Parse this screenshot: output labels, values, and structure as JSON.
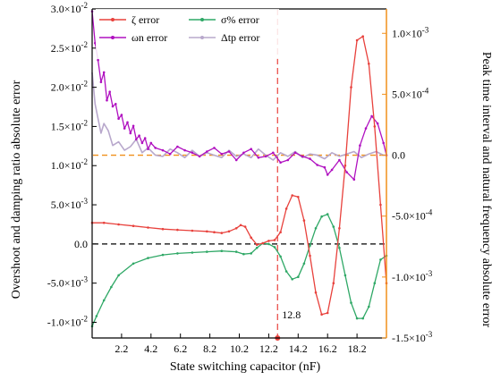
{
  "chart_data": {
    "type": "line",
    "xlabel": "State switching capacitor (nF)",
    "ylabel_left": "Overshoot and damping ratio absolute error",
    "ylabel_right": "Peak time interval and natural frequency absolute error",
    "x_ticks": [
      "2.2",
      "4.2",
      "6.2",
      "8.2",
      "10.2",
      "12.2",
      "14.2",
      "16.2",
      "18.2"
    ],
    "x_tick_values": [
      2.2,
      4.2,
      6.2,
      8.2,
      10.2,
      12.2,
      14.2,
      16.2,
      18.2
    ],
    "xlim": [
      0.2,
      20.2
    ],
    "ylim_left": [
      -0.012,
      0.03
    ],
    "ylim_right": [
      -0.0015,
      0.0012
    ],
    "left_ticks": [
      {
        "v": -0.01,
        "m": "-1.0",
        "e": "-2"
      },
      {
        "v": -0.005,
        "m": "-5.0",
        "e": "-3"
      },
      {
        "v": 0.0,
        "m": "0.0",
        "e": ""
      },
      {
        "v": 0.005,
        "m": "5.0",
        "e": "-3"
      },
      {
        "v": 0.01,
        "m": "1.0",
        "e": "-2"
      },
      {
        "v": 0.015,
        "m": "1.5",
        "e": "-2"
      },
      {
        "v": 0.02,
        "m": "2.0",
        "e": "-2"
      },
      {
        "v": 0.025,
        "m": "2.5",
        "e": "-2"
      },
      {
        "v": 0.03,
        "m": "3.0",
        "e": "-2"
      }
    ],
    "right_ticks": [
      {
        "v": -0.0015,
        "m": "-1.5",
        "e": "-3"
      },
      {
        "v": -0.001,
        "m": "-1.0",
        "e": "-3"
      },
      {
        "v": -0.0005,
        "m": "-5.0",
        "e": "-4"
      },
      {
        "v": 0.0,
        "m": "0.0",
        "e": ""
      },
      {
        "v": 0.0005,
        "m": "5.0",
        "e": "-4"
      },
      {
        "v": 0.001,
        "m": "1.0",
        "e": "-3"
      }
    ],
    "vline": {
      "x": 12.8,
      "label": "12.8"
    },
    "legend": [
      {
        "text": "ζ error",
        "color": "#e8413c"
      },
      {
        "text": "σ% error",
        "color": "#2fa866"
      },
      {
        "text": "ωn error",
        "color": "#b010c0"
      },
      {
        "text": "Δtp error",
        "color": "#b8a8cc"
      }
    ],
    "colors": {
      "zeta": "#e8413c",
      "sigma": "#2fa866",
      "omega": "#b010c0",
      "dtp": "#b8a8cc",
      "right_axis": "#f0901a",
      "vline": "#e8413c"
    },
    "series": [
      {
        "key": "zeta",
        "axis": "left",
        "color": "#e8413c",
        "x": [
          0.2,
          1,
          2,
          3,
          4,
          5,
          6,
          7,
          8,
          8.5,
          9,
          9.5,
          10,
          10.3,
          10.6,
          11,
          11.4,
          11.8,
          12.2,
          12.6,
          13,
          13.4,
          13.8,
          14.2,
          14.6,
          15,
          15.4,
          15.8,
          16.2,
          16.6,
          17,
          17.4,
          17.8,
          18.2,
          18.6,
          19,
          19.4,
          19.8,
          20.2
        ],
        "y": [
          0.0027,
          0.0027,
          0.0025,
          0.0023,
          0.0021,
          0.0019,
          0.0018,
          0.0017,
          0.0016,
          0.0015,
          0.0014,
          0.0016,
          0.002,
          0.0024,
          0.0022,
          0.0008,
          -0.0001,
          0.0001,
          0.0004,
          0.0005,
          0.0015,
          0.0045,
          0.0062,
          0.006,
          0.003,
          -0.0015,
          -0.0062,
          -0.009,
          -0.0088,
          -0.005,
          0.002,
          0.01,
          0.02,
          0.026,
          0.0265,
          0.023,
          0.015,
          0.005,
          -0.005
        ]
      },
      {
        "key": "sigma",
        "axis": "left",
        "color": "#2fa866",
        "x": [
          0.2,
          0.5,
          1,
          1.5,
          2,
          3,
          4,
          5,
          6,
          7,
          8,
          9,
          10,
          10.5,
          11,
          11.4,
          11.8,
          12.2,
          12.6,
          13,
          13.4,
          13.8,
          14.2,
          14.6,
          15,
          15.4,
          15.8,
          16.2,
          16.6,
          17,
          17.4,
          17.8,
          18.2,
          18.6,
          19,
          19.4,
          19.8,
          20.2
        ],
        "y": [
          -0.0105,
          -0.0092,
          -0.0072,
          -0.0055,
          -0.004,
          -0.0025,
          -0.0018,
          -0.0014,
          -0.0012,
          -0.0011,
          -0.001,
          -0.0009,
          -0.001,
          -0.0013,
          -0.0012,
          -0.0005,
          0.0001,
          0.0,
          -0.0004,
          -0.0016,
          -0.0035,
          -0.0045,
          -0.0042,
          -0.0025,
          -0.0002,
          0.002,
          0.0035,
          0.0038,
          0.0022,
          -0.0005,
          -0.004,
          -0.0075,
          -0.0095,
          -0.0095,
          -0.008,
          -0.005,
          -0.002,
          -0.0015
        ]
      },
      {
        "key": "omega",
        "axis": "right",
        "color": "#b010c0",
        "x": [
          0.2,
          0.4,
          0.6,
          0.8,
          1,
          1.2,
          1.4,
          1.6,
          1.8,
          2,
          2.2,
          2.4,
          2.6,
          2.8,
          3,
          3.2,
          3.4,
          3.6,
          3.8,
          4,
          4.2,
          4.5,
          5,
          5.5,
          6,
          6.5,
          7,
          7.5,
          8,
          8.5,
          9,
          9.5,
          10,
          10.5,
          11,
          11.5,
          12,
          12.5,
          13,
          13.5,
          14,
          14.5,
          15,
          15.5,
          16,
          16.2,
          16.5,
          17,
          17.5,
          18,
          18.4,
          18.8,
          19.2,
          19.6,
          20,
          20.2
        ],
        "y": [
          0.00118,
          0.00092,
          0.00078,
          0.0006,
          0.00068,
          0.00045,
          0.00052,
          0.0004,
          0.00042,
          0.0003,
          0.00033,
          0.00022,
          0.00027,
          0.00018,
          0.00024,
          0.00013,
          0.00016,
          0.0001,
          0.00014,
          5e-05,
          0.0001,
          6e-05,
          4e-05,
          1e-05,
          7e-05,
          4e-05,
          2e-05,
          -1e-05,
          3e-05,
          6e-05,
          1e-05,
          3e-05,
          -4e-05,
          2e-05,
          5e-05,
          -2e-05,
          -1e-05,
          2e-05,
          -6e-05,
          -4e-05,
          2e-05,
          -1e-05,
          -3e-05,
          -8e-05,
          -0.0001,
          -0.00016,
          -0.00012,
          -4e-05,
          -0.00014,
          -0.0002,
          8e-05,
          0.00022,
          0.00032,
          0.00026,
          0.0001,
          0.0
        ]
      },
      {
        "key": "dtp",
        "axis": "right",
        "color": "#b8a8cc",
        "x": [
          0.2,
          0.4,
          0.6,
          0.8,
          1,
          1.3,
          1.6,
          2,
          2.4,
          2.8,
          3.2,
          3.6,
          4,
          4.5,
          5,
          5.5,
          6,
          6.5,
          7,
          7.5,
          8,
          8.5,
          9,
          9.5,
          10,
          10.5,
          11,
          11.5,
          12,
          12.5,
          13,
          13.5,
          14,
          14.5,
          15,
          15.5,
          16,
          16.5,
          17,
          17.5,
          18,
          18.5,
          19,
          19.5,
          20,
          20.2
        ],
        "y": [
          0.00068,
          0.00042,
          0.0003,
          0.00018,
          0.00026,
          0.0002,
          8e-05,
          0.00011,
          4e-05,
          7e-05,
          0.00013,
          2e-05,
          6e-05,
          0.0,
          -1e-05,
          5e-05,
          2e-05,
          -2e-05,
          4e-05,
          -1e-05,
          2e-05,
          0.0,
          -2e-05,
          4e-05,
          -1e-05,
          1e-05,
          -2e-05,
          5e-05,
          0.0,
          -4e-05,
          2e-05,
          -1e-05,
          3e-05,
          -2e-05,
          1e-05,
          0.0,
          -3e-05,
          2e-05,
          -1e-05,
          1e-05,
          3e-05,
          -2e-05,
          1e-05,
          3e-05,
          0.0,
          0.0
        ]
      }
    ],
    "ref_lines": [
      {
        "axis": "left",
        "y": 0.0,
        "color": "#000000",
        "style": "dashed"
      },
      {
        "axis": "right",
        "y": 0.0,
        "color": "#f0901a",
        "style": "dashed"
      }
    ]
  }
}
